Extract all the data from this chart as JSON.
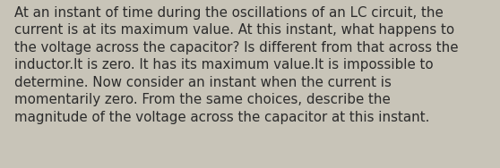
{
  "lines": [
    "At an instant of time during the oscillations of an LC circuit, the",
    "current is at its maximum value. At this instant, what happens to",
    "the voltage across the capacitor? Is different from that across the",
    "inductor.It is zero. It has its maximum value.It is impossible to",
    "determine. Now consider an instant when the current is",
    "momentarily zero. From the same choices, describe the",
    "magnitude of the voltage across the capacitor at this instant."
  ],
  "background_color": "#c8c4b8",
  "text_color": "#2b2b2b",
  "font_size": 10.8,
  "fig_width": 5.58,
  "fig_height": 1.88,
  "dpi": 100,
  "linespacing": 1.38
}
